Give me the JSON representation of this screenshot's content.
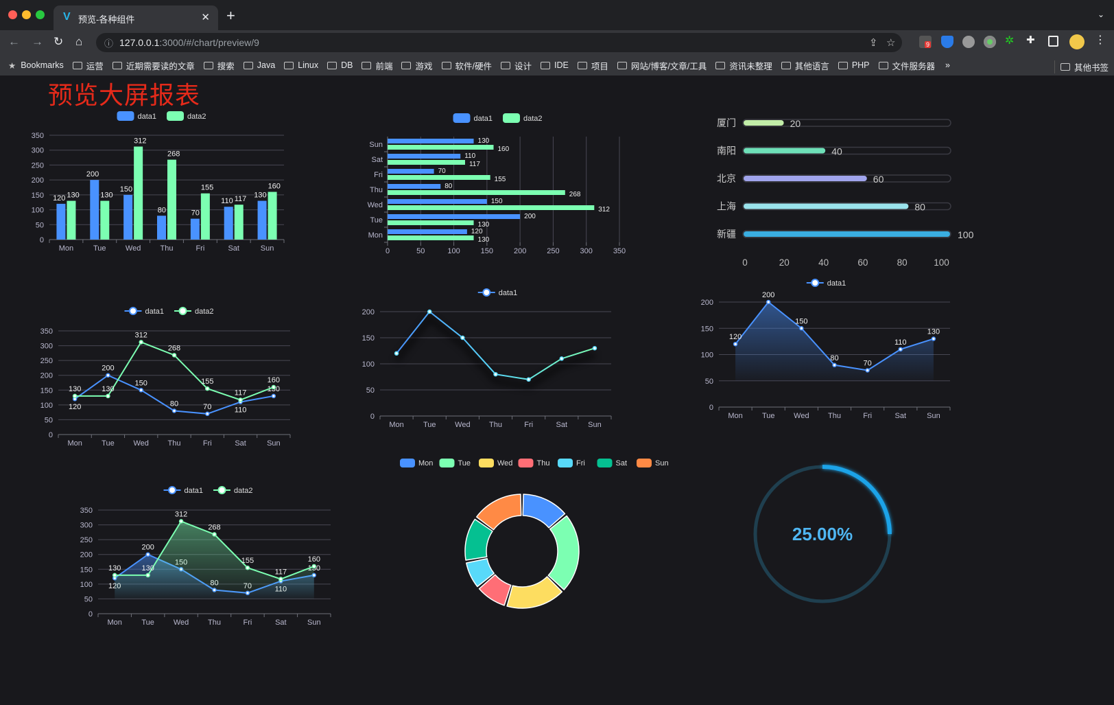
{
  "browser": {
    "tab_title": "预览-各种组件",
    "url_host": "127.0.0.1",
    "url_rest": ":3000/#/chart/preview/9",
    "bookmarks_label": "Bookmarks",
    "bookmarks": [
      "运营",
      "近期需要读的文章",
      "搜索",
      "Java",
      "Linux",
      "DB",
      "前端",
      "游戏",
      "软件/硬件",
      "设计",
      "IDE",
      "项目",
      "网站/博客/文章/工具",
      "资讯未整理",
      "其他语言",
      "PHP",
      "文件服务器"
    ],
    "more": "»",
    "other_bookmarks": "其他书签",
    "extension_badge": "9"
  },
  "page": {
    "title": "预览大屏报表",
    "title_color": "#e52a1a",
    "background": "#18181c"
  },
  "colors": {
    "blue": "#4992ff",
    "green": "#7cffb2",
    "axis_text": "#b9b8ce",
    "grid": "#484753"
  },
  "chart_data": [
    {
      "type": "bar",
      "categories": [
        "Mon",
        "Tue",
        "Wed",
        "Thu",
        "Fri",
        "Sat",
        "Sun"
      ],
      "series": [
        {
          "name": "data1",
          "values": [
            120,
            200,
            150,
            80,
            70,
            110,
            130
          ]
        },
        {
          "name": "data2",
          "values": [
            130,
            130,
            312,
            268,
            155,
            117,
            160
          ]
        }
      ],
      "ylim": [
        0,
        350
      ],
      "yticks": [
        "0",
        "50",
        "100",
        "150",
        "200",
        "250",
        "300",
        "350"
      ],
      "legend": "top-center",
      "grid": true
    },
    {
      "type": "bar",
      "orientation": "horizontal",
      "categories": [
        "Mon",
        "Tue",
        "Wed",
        "Thu",
        "Fri",
        "Sat",
        "Sun"
      ],
      "series": [
        {
          "name": "data1",
          "values": [
            120,
            200,
            150,
            80,
            70,
            110,
            130
          ]
        },
        {
          "name": "data2",
          "values": [
            130,
            130,
            312,
            268,
            155,
            117,
            160
          ]
        }
      ],
      "xlim": [
        0,
        350
      ],
      "xticks": [
        "0",
        "50",
        "100",
        "150",
        "200",
        "250",
        "300",
        "350"
      ],
      "legend": "top-center",
      "grid": true
    },
    {
      "type": "bar",
      "orientation": "horizontal",
      "style": "progress",
      "categories": [
        "厦门",
        "南阳",
        "北京",
        "上海",
        "新疆"
      ],
      "values": [
        20,
        40,
        60,
        80,
        100
      ],
      "colors": [
        "#c2eda8",
        "#6ee0b8",
        "#a0a4ec",
        "#9ae3ec",
        "#3aade0"
      ],
      "xlim": [
        0,
        100
      ],
      "xticks": [
        "0",
        "20",
        "40",
        "60",
        "80",
        "100"
      ]
    },
    {
      "type": "line",
      "categories": [
        "Mon",
        "Tue",
        "Wed",
        "Thu",
        "Fri",
        "Sat",
        "Sun"
      ],
      "series": [
        {
          "name": "data1",
          "values": [
            120,
            200,
            150,
            80,
            70,
            110,
            130
          ]
        },
        {
          "name": "data2",
          "values": [
            130,
            130,
            312,
            268,
            155,
            117,
            160
          ]
        }
      ],
      "ylim": [
        0,
        350
      ],
      "yticks": [
        "0",
        "50",
        "100",
        "150",
        "200",
        "250",
        "300",
        "350"
      ],
      "legend": "top-center",
      "grid": true
    },
    {
      "type": "line",
      "categories": [
        "Mon",
        "Tue",
        "Wed",
        "Thu",
        "Fri",
        "Sat",
        "Sun"
      ],
      "series": [
        {
          "name": "data1",
          "values": [
            120,
            200,
            150,
            80,
            70,
            110,
            130
          ]
        }
      ],
      "ylim": [
        0,
        200
      ],
      "yticks": [
        "0",
        "50",
        "100",
        "150",
        "200"
      ],
      "legend": "top-center",
      "grid": true
    },
    {
      "type": "area",
      "categories": [
        "Mon",
        "Tue",
        "Wed",
        "Thu",
        "Fri",
        "Sat",
        "Sun"
      ],
      "series": [
        {
          "name": "data1",
          "values": [
            120,
            200,
            150,
            80,
            70,
            110,
            130
          ]
        }
      ],
      "ylim": [
        0,
        200
      ],
      "yticks": [
        "0",
        "50",
        "100",
        "150",
        "200"
      ],
      "legend": "top-center",
      "grid": true
    },
    {
      "type": "area",
      "categories": [
        "Mon",
        "Tue",
        "Wed",
        "Thu",
        "Fri",
        "Sat",
        "Sun"
      ],
      "series": [
        {
          "name": "data1",
          "values": [
            120,
            200,
            150,
            80,
            70,
            110,
            130
          ]
        },
        {
          "name": "data2",
          "values": [
            130,
            130,
            312,
            268,
            155,
            117,
            160
          ]
        }
      ],
      "ylim": [
        0,
        350
      ],
      "yticks": [
        "0",
        "50",
        "100",
        "150",
        "200",
        "250",
        "300",
        "350"
      ],
      "legend": "top-center",
      "grid": true
    },
    {
      "type": "pie",
      "style": "donut",
      "categories": [
        "Mon",
        "Tue",
        "Wed",
        "Thu",
        "Fri",
        "Sat",
        "Sun"
      ],
      "values": [
        120,
        200,
        150,
        80,
        70,
        110,
        130
      ],
      "colors": [
        "#4992ff",
        "#7cffb2",
        "#fddd60",
        "#ff6e76",
        "#58d9f9",
        "#05c091",
        "#ff8a45"
      ],
      "legend": "top-center"
    },
    {
      "type": "gauge",
      "value": 25,
      "label": "25.00%",
      "color": "#1ba3e8"
    }
  ]
}
